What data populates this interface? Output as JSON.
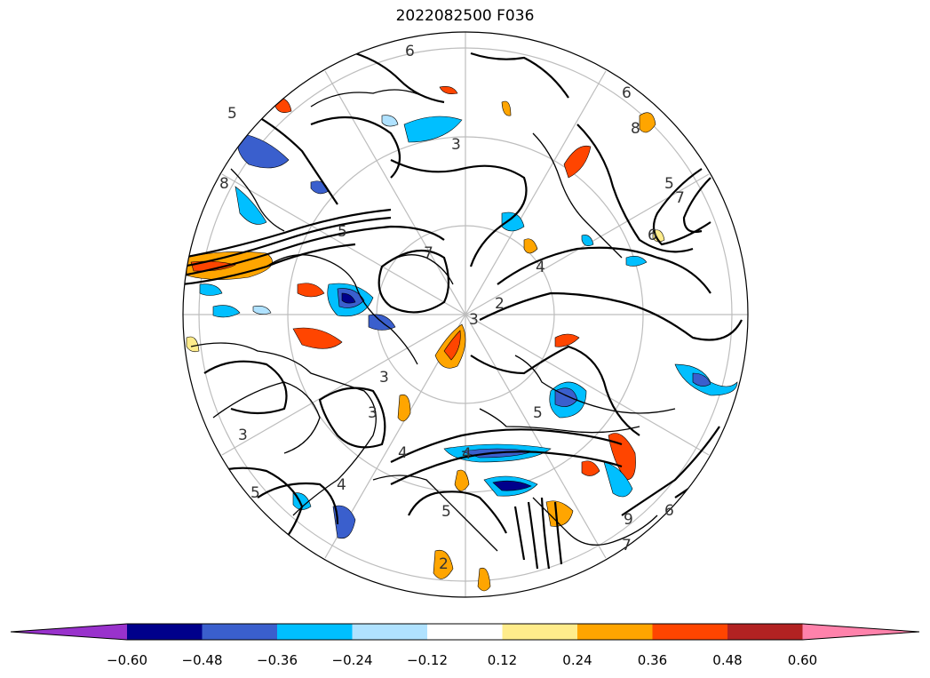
{
  "title": "2022082500 F036",
  "projection": "north-polar-stereographic",
  "grid": true,
  "contour_labels": [
    "6",
    "5",
    "8",
    "5",
    "7",
    "6",
    "5",
    "4",
    "3",
    "2",
    "3",
    "3",
    "3",
    "5",
    "4",
    "5",
    "4",
    "2",
    "6",
    "5",
    "7",
    "4",
    "3",
    "6",
    "9",
    "8",
    "7"
  ],
  "colorbar": {
    "extend": "both",
    "bins": [
      {
        "range": "< -0.60",
        "color": "#9932cc"
      },
      {
        "range": "-0.60 to -0.48",
        "color": "#00008b"
      },
      {
        "range": "-0.48 to -0.36",
        "color": "#3a5fcd"
      },
      {
        "range": "-0.36 to -0.24",
        "color": "#00bfff"
      },
      {
        "range": "-0.24 to -0.12",
        "color": "#b0e2ff"
      },
      {
        "range": "-0.12 to 0.12",
        "color": "#ffffff"
      },
      {
        "range": "0.12 to 0.24",
        "color": "#ffec8b"
      },
      {
        "range": "0.24 to 0.36",
        "color": "#ffa500"
      },
      {
        "range": "0.36 to 0.48",
        "color": "#ff4500"
      },
      {
        "range": "0.48 to 0.60",
        "color": "#b22222"
      },
      {
        "range": "> 0.60",
        "color": "#ff82ab"
      }
    ],
    "ticks": [
      "−0.60",
      "−0.48",
      "−0.36",
      "−0.24",
      "−0.12",
      "0.12",
      "0.24",
      "0.36",
      "0.48",
      "0.60"
    ]
  }
}
